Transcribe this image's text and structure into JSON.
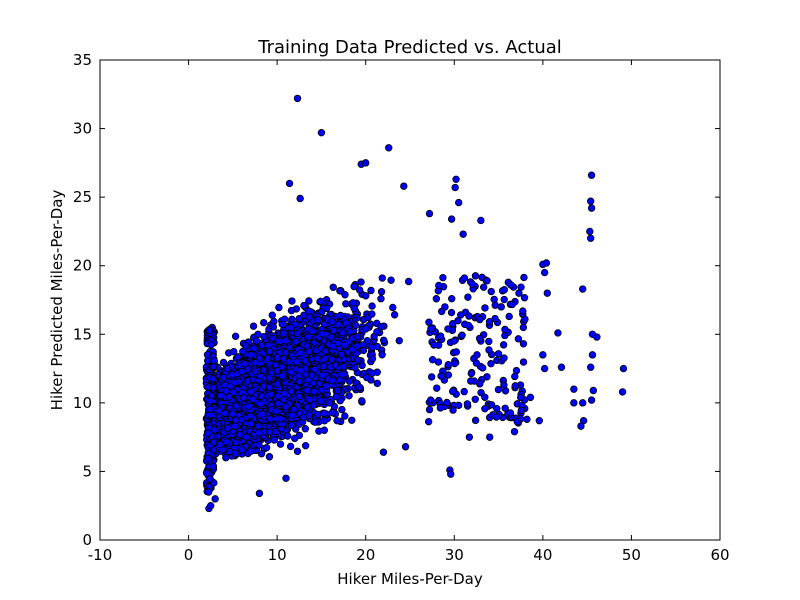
{
  "chart_data": {
    "type": "scatter",
    "title": "Training Data Predicted vs. Actual",
    "xlabel": "Hiker Miles-Per-Day",
    "ylabel": "Hiker Predicted Miles-Per-Day",
    "xlim": [
      -10,
      60
    ],
    "ylim": [
      0,
      35
    ],
    "xticks": [
      -10,
      0,
      10,
      20,
      30,
      40,
      50,
      60
    ],
    "yticks": [
      0,
      5,
      10,
      15,
      20,
      25,
      30,
      35
    ],
    "grid": false,
    "legend": "none",
    "marker_color": "#0000ff",
    "marker_edge_color": "#000000",
    "points": [
      [
        12.3,
        32.2
      ],
      [
        15.0,
        29.7
      ],
      [
        22.6,
        28.6
      ],
      [
        19.5,
        27.4
      ],
      [
        20.0,
        27.5
      ],
      [
        45.5,
        26.6
      ],
      [
        11.4,
        26.0
      ],
      [
        30.2,
        26.3
      ],
      [
        30.1,
        25.7
      ],
      [
        24.3,
        25.8
      ],
      [
        12.6,
        24.9
      ],
      [
        45.4,
        24.7
      ],
      [
        45.5,
        24.2
      ],
      [
        29.7,
        23.4
      ],
      [
        33.0,
        23.3
      ],
      [
        45.3,
        22.5
      ],
      [
        45.4,
        22.0
      ],
      [
        31.0,
        22.3
      ],
      [
        27.2,
        23.8
      ],
      [
        30.5,
        24.6
      ],
      [
        36.2,
        16.3
      ],
      [
        40.0,
        20.1
      ],
      [
        40.4,
        20.2
      ],
      [
        37.3,
        18.0
      ],
      [
        33.7,
        18.9
      ],
      [
        35.3,
        17.0
      ],
      [
        37.8,
        15.5
      ],
      [
        41.7,
        15.1
      ],
      [
        42.1,
        12.6
      ],
      [
        43.5,
        10.0
      ],
      [
        44.5,
        10.0
      ],
      [
        44.6,
        8.7
      ],
      [
        44.3,
        8.3
      ],
      [
        45.6,
        15.0
      ],
      [
        46.1,
        14.8
      ],
      [
        45.6,
        13.5
      ],
      [
        45.4,
        12.6
      ],
      [
        45.7,
        10.9
      ],
      [
        45.5,
        10.2
      ],
      [
        49.1,
        12.5
      ],
      [
        49.0,
        10.8
      ],
      [
        44.5,
        18.3
      ],
      [
        36.8,
        7.9
      ],
      [
        38.2,
        8.8
      ],
      [
        39.6,
        8.7
      ],
      [
        40.0,
        13.5
      ],
      [
        40.2,
        12.5
      ],
      [
        38.6,
        10.4
      ],
      [
        37.5,
        10.4
      ],
      [
        29.5,
        5.1
      ],
      [
        29.6,
        4.8
      ],
      [
        31.7,
        7.5
      ],
      [
        34.0,
        7.5
      ],
      [
        32.5,
        12.9
      ],
      [
        35.6,
        11.3
      ],
      [
        24.5,
        6.8
      ],
      [
        22.0,
        6.4
      ],
      [
        2.3,
        2.3
      ],
      [
        2.5,
        2.5
      ],
      [
        3.0,
        3.0
      ],
      [
        8.0,
        3.4
      ],
      [
        11.0,
        4.5
      ],
      [
        40.2,
        19.5
      ],
      [
        40.5,
        18.0
      ],
      [
        43.5,
        11.0
      ]
    ]
  }
}
